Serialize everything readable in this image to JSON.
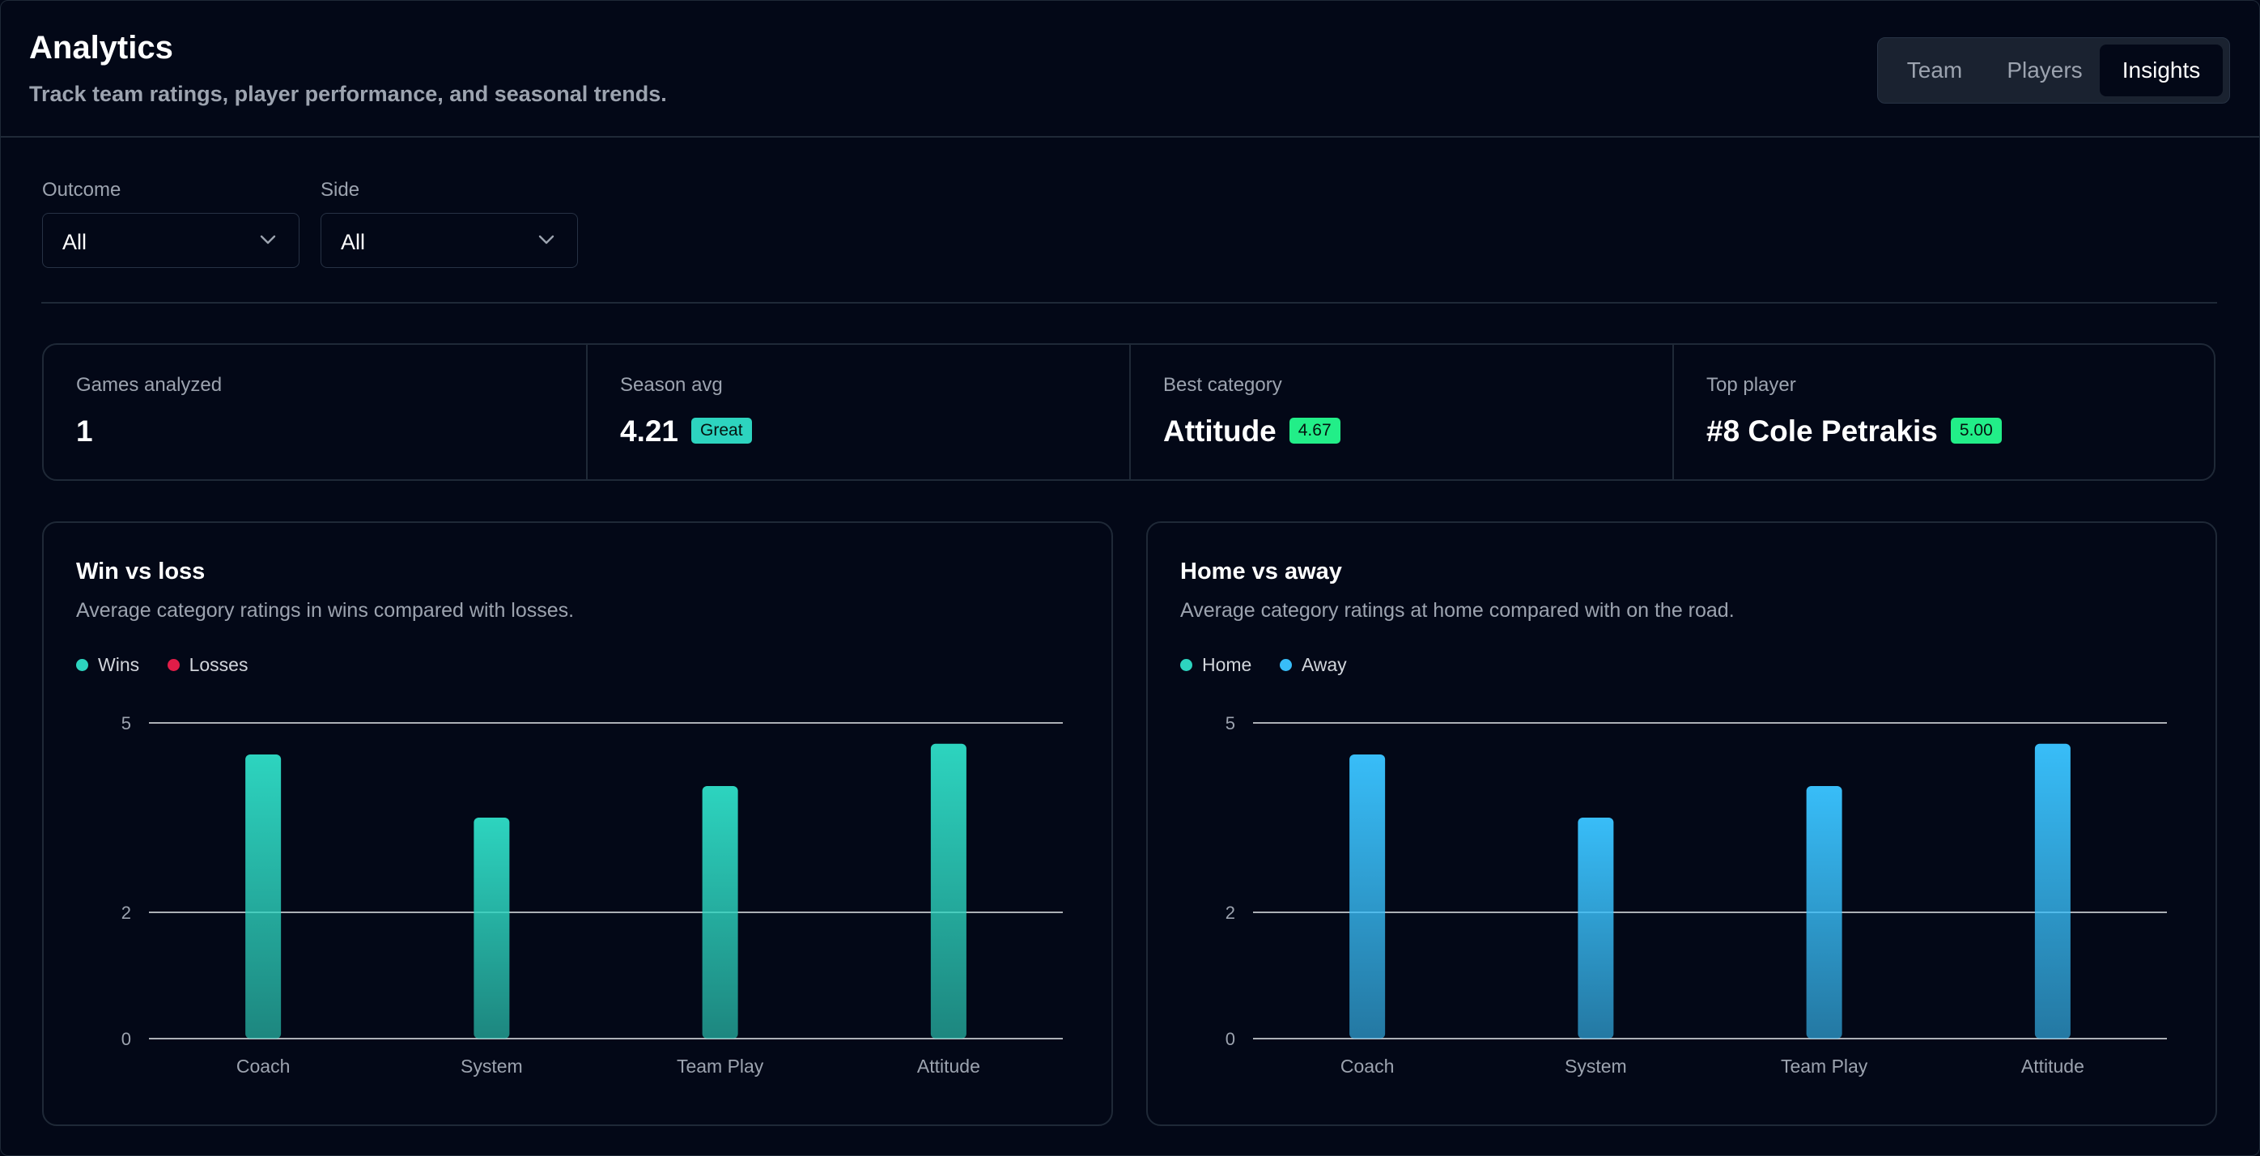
{
  "header": {
    "title": "Analytics",
    "subtitle": "Track team ratings, player performance, and seasonal trends.",
    "tabs": [
      {
        "label": "Team",
        "active": false
      },
      {
        "label": "Players",
        "active": false
      },
      {
        "label": "Insights",
        "active": true
      }
    ]
  },
  "filters": {
    "outcome": {
      "label": "Outcome",
      "value": "All"
    },
    "side": {
      "label": "Side",
      "value": "All"
    }
  },
  "stats": {
    "games": {
      "label": "Games analyzed",
      "value": "1"
    },
    "season_avg": {
      "label": "Season avg",
      "value": "4.21",
      "badge": "Great"
    },
    "best_category": {
      "label": "Best category",
      "value": "Attitude",
      "badge": "4.67"
    },
    "top_player": {
      "label": "Top player",
      "value": "#8 Cole Petrakis",
      "badge": "5.00"
    }
  },
  "colors": {
    "wins": "#2dd4bf",
    "losses": "#e11d48",
    "home": "#2dd4bf",
    "away": "#38bdf8",
    "badge_teal": "#2dd4bf",
    "badge_green": "#22ee88"
  },
  "chart_data": [
    {
      "type": "bar",
      "title": "Win vs loss",
      "subtitle": "Average category ratings in wins compared with losses.",
      "categories": [
        "Coach",
        "System",
        "Team Play",
        "Attitude"
      ],
      "series": [
        {
          "name": "Wins",
          "values": [
            4.5,
            3.5,
            4.0,
            4.67
          ]
        },
        {
          "name": "Losses",
          "values": [
            0,
            0,
            0,
            0
          ]
        }
      ],
      "yticks": [
        0,
        2,
        5
      ],
      "ylim": [
        0,
        5
      ],
      "legend": "top-left",
      "grid": true
    },
    {
      "type": "bar",
      "title": "Home vs away",
      "subtitle": "Average category ratings at home compared with on the road.",
      "categories": [
        "Coach",
        "System",
        "Team Play",
        "Attitude"
      ],
      "series": [
        {
          "name": "Home",
          "values": [
            0,
            0,
            0,
            0
          ]
        },
        {
          "name": "Away",
          "values": [
            4.5,
            3.5,
            4.0,
            4.67
          ]
        }
      ],
      "yticks": [
        0,
        2,
        5
      ],
      "ylim": [
        0,
        5
      ],
      "legend": "top-left",
      "grid": true
    }
  ]
}
